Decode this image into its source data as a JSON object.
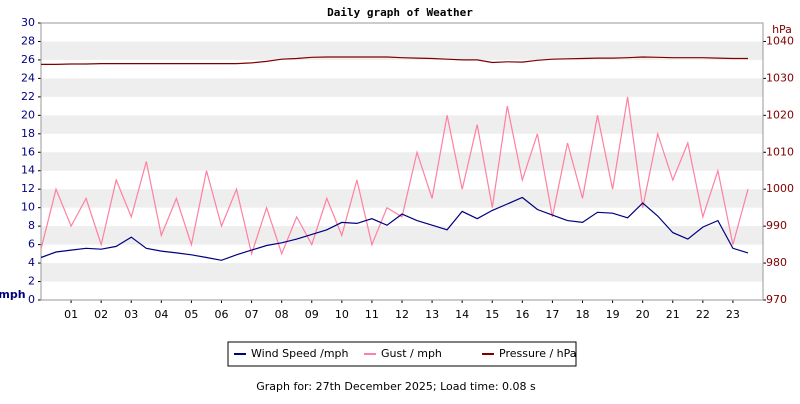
{
  "chart_data": {
    "type": "line",
    "title": "Daily graph of Weather",
    "ylabel": "mph",
    "y2label": "hPa",
    "footer": "Graph for: 27th December 2025; Load time: 0.08 s",
    "grid": "bands",
    "xlim": [
      0,
      24
    ],
    "xticks": [
      {
        "value": 1,
        "label": "01"
      },
      {
        "value": 2,
        "label": "02"
      },
      {
        "value": 3,
        "label": "03"
      },
      {
        "value": 4,
        "label": "04"
      },
      {
        "value": 5,
        "label": "05"
      },
      {
        "value": 6,
        "label": "06"
      },
      {
        "value": 7,
        "label": "07"
      },
      {
        "value": 8,
        "label": "08"
      },
      {
        "value": 9,
        "label": "09"
      },
      10,
      11,
      12,
      13,
      14,
      15,
      16,
      17,
      18,
      19,
      20,
      21,
      22,
      23
    ],
    "ylim": [
      0,
      30
    ],
    "yticks": [
      0,
      2,
      4,
      6,
      8,
      10,
      12,
      14,
      16,
      18,
      20,
      22,
      24,
      26,
      28,
      30
    ],
    "y2lim": [
      970,
      1045
    ],
    "y2ticks": [
      970,
      980,
      990,
      1000,
      1010,
      1020,
      1030,
      1040
    ],
    "axis_color": "#000080",
    "axis2_color": "#800000",
    "x": [
      0,
      0.5,
      1,
      1.5,
      2,
      2.5,
      3,
      3.5,
      4,
      4.5,
      5,
      5.5,
      6,
      6.5,
      7,
      7.5,
      8,
      8.5,
      9,
      9.5,
      10,
      10.5,
      11,
      11.5,
      12,
      12.5,
      13,
      13.5,
      14,
      14.5,
      15,
      15.5,
      16,
      16.5,
      17,
      17.5,
      18,
      18.5,
      19,
      19.5,
      20,
      20.5,
      21,
      21.5,
      22,
      22.5,
      23,
      23.5
    ],
    "series": [
      {
        "name": "Gust / mph",
        "color": "#ff80a0",
        "values": [
          5.5,
          12,
          8,
          11,
          6,
          13,
          9,
          15,
          7,
          11,
          6,
          14,
          8,
          12,
          5,
          10,
          5,
          9,
          6,
          11,
          7,
          13,
          6,
          10,
          9,
          16,
          11,
          20,
          12,
          19,
          10,
          21,
          13,
          18,
          9,
          17,
          11,
          20,
          12,
          22,
          10,
          18,
          13,
          17,
          9,
          14,
          6,
          12
        ]
      },
      {
        "name": "Wind Speed /mph",
        "color": "#000080",
        "values": [
          4.6,
          5.2,
          5.4,
          5.6,
          5.5,
          5.8,
          6.8,
          5.6,
          5.3,
          5.1,
          4.9,
          4.6,
          4.3,
          4.9,
          5.4,
          5.9,
          6.2,
          6.6,
          7.1,
          7.6,
          8.4,
          8.3,
          8.8,
          8.1,
          9.3,
          8.6,
          8.1,
          7.6,
          9.6,
          8.8,
          9.7,
          10.4,
          11.1,
          9.8,
          9.2,
          8.6,
          8.4,
          9.5,
          9.4,
          8.9,
          10.5,
          9.1,
          7.3,
          6.6,
          7.9,
          8.6,
          5.6,
          5.1
        ]
      },
      {
        "name": "Pressure / hPa",
        "color": "#800000",
        "axis": "y2",
        "values": [
          1033.8,
          1033.8,
          1033.9,
          1033.9,
          1034.0,
          1034.0,
          1034.0,
          1034.0,
          1034.0,
          1034.0,
          1034.0,
          1034.0,
          1034.0,
          1034.0,
          1034.2,
          1034.6,
          1035.2,
          1035.4,
          1035.7,
          1035.8,
          1035.8,
          1035.8,
          1035.8,
          1035.8,
          1035.6,
          1035.5,
          1035.4,
          1035.2,
          1035.0,
          1035.0,
          1034.3,
          1034.5,
          1034.4,
          1034.9,
          1035.2,
          1035.3,
          1035.4,
          1035.5,
          1035.5,
          1035.6,
          1035.8,
          1035.7,
          1035.6,
          1035.6,
          1035.6,
          1035.5,
          1035.4,
          1035.4
        ]
      }
    ],
    "legend_order": [
      1,
      0,
      2
    ]
  }
}
